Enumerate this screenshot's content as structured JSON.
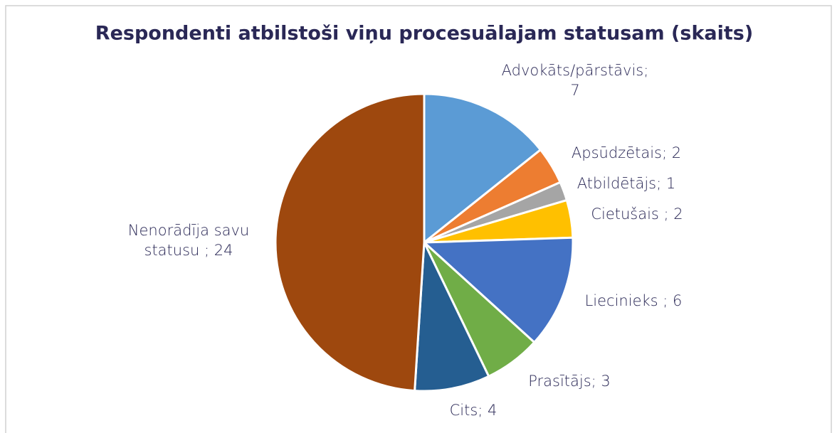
{
  "chart_data": {
    "type": "pie",
    "title": "Respondenti atbilstoši viņu procesuālajam statusam (skaits)",
    "labels": [
      "Advokāts/pārstāvis; 7",
      "Apsūdzētais; 2",
      "Atbildētājs; 1",
      "Cietušais ; 2",
      "Liecinieks ; 6",
      "Prasītājs; 3",
      "Cits; 4",
      "Nenorādīja savu statusu ; 24"
    ],
    "values": [
      7,
      2,
      1,
      2,
      6,
      3,
      4,
      24
    ],
    "colors": [
      "#5b9bd5",
      "#ed7d31",
      "#a5a5a5",
      "#ffc000",
      "#4472c4",
      "#70ad47",
      "#255e91",
      "#9e480e"
    ]
  }
}
